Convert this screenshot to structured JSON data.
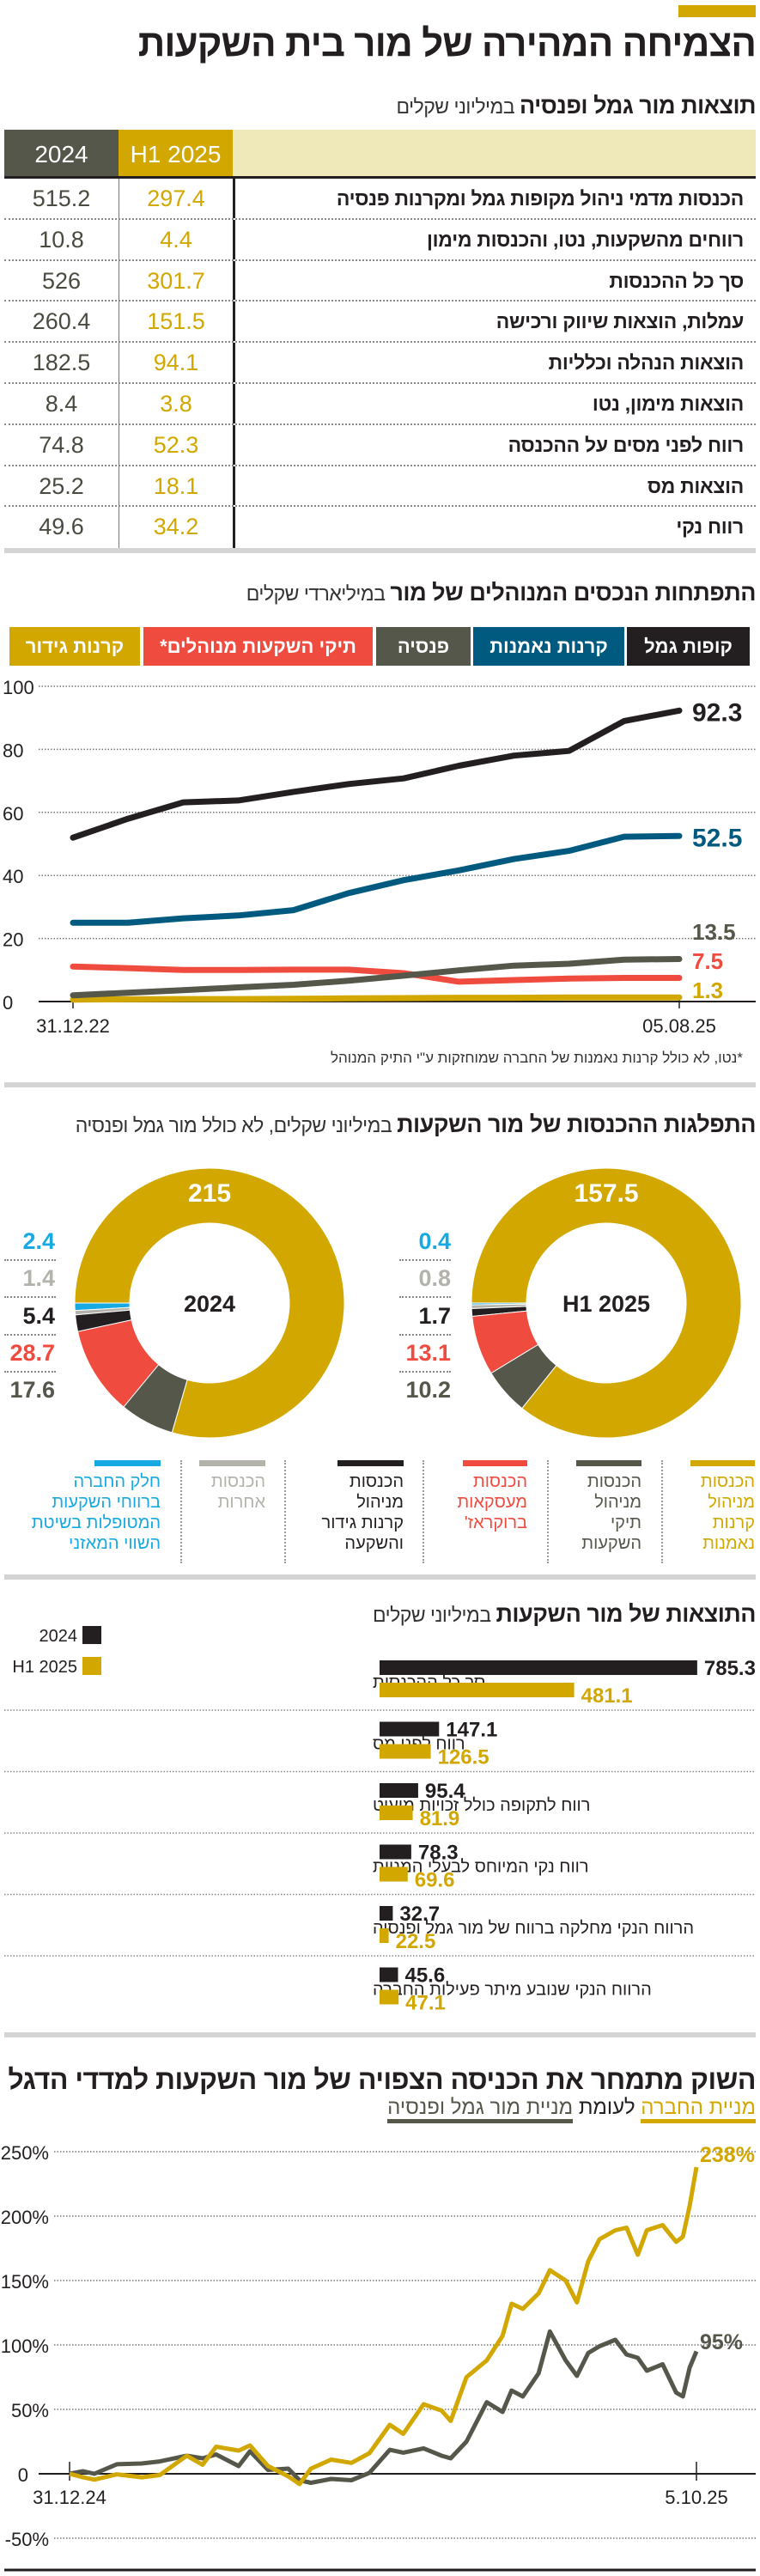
{
  "colors": {
    "gold": "#d2a800",
    "dark_gray": "#55574a",
    "black": "#231f20",
    "blue": "#005a80",
    "red": "#ef4b3f",
    "light_gray": "#b3b3ab",
    "light_blue": "#17a9e1",
    "cream": "#efe9b9"
  },
  "header": {
    "title": "הצמיחה המהירה של מור בית השקעות"
  },
  "table": {
    "title": "תוצאות מור גמל ופנסיה",
    "unit": " במיליוני שקלים",
    "columns": [
      "H1 2025",
      "2024"
    ],
    "rows": [
      {
        "label": "הכנסות מדמי ניהול מקופות גמל ומקרנות פנסיה",
        "h1_2025": "297.4",
        "y2024": "515.2"
      },
      {
        "label": "רווחים מהשקעות, נטו, והכנסות מימון",
        "h1_2025": "4.4",
        "y2024": "10.8"
      },
      {
        "label": "סך כל ההכנסות",
        "h1_2025": "301.7",
        "y2024": "526"
      },
      {
        "label": "עמלות, הוצאות שיווק ורכישה",
        "h1_2025": "151.5",
        "y2024": "260.4"
      },
      {
        "label": "הוצאות הנהלה וכלליות",
        "h1_2025": "94.1",
        "y2024": "182.5"
      },
      {
        "label": "הוצאות מימון, נטו",
        "h1_2025": "3.8",
        "y2024": "8.4"
      },
      {
        "label": "רווח לפני מסים על ההכנסה",
        "h1_2025": "52.3",
        "y2024": "74.8"
      },
      {
        "label": "הוצאות מס",
        "h1_2025": "18.1",
        "y2024": "25.2"
      },
      {
        "label": "רווח נקי",
        "h1_2025": "34.2",
        "y2024": "49.6"
      }
    ]
  },
  "assets": {
    "title": "התפתחות הנכסים המנוהלים של מור",
    "unit": " במיליארדי שקלים",
    "footnote": "*נטו, לא כולל קרנות נאמנות של החברה שמוחזקות ע\"י התיק המנוהל"
  },
  "income": {
    "title": "התפלגות ההכנסות של מור השקעות",
    "unit": " במיליוני שקלים, לא כולל מור גמל ופנסיה",
    "legend": [
      {
        "lines": [
          "הכנסות",
          "מניהול",
          "קרנות",
          "נאמנות"
        ],
        "color": "#d2a800"
      },
      {
        "lines": [
          "הכנסות",
          "מניהול",
          "תיקי",
          "השקעות"
        ],
        "color": "#55574a"
      },
      {
        "lines": [
          "הכנסות",
          "מעסקאות",
          "ברוקראז'"
        ],
        "color": "#ef4b3f"
      },
      {
        "lines": [
          "הכנסות",
          "מניהול",
          "קרנות גידור",
          "והשקעה"
        ],
        "color": "#231f20"
      },
      {
        "lines": [
          "הכנסות",
          "אחרות"
        ],
        "color": "#b3b3ab"
      },
      {
        "lines": [
          "חלק החברה",
          "ברווחי השקעות",
          "המטופלות בשיטת",
          "השווי המאזני"
        ],
        "color": "#17a9e1"
      }
    ]
  },
  "results": {
    "title": "התוצאות של מור השקעות",
    "unit": " במיליוני שקלים"
  },
  "stock": {
    "title": "השוק מתמחר את הכניסה הצפויה של מור השקעות למדדי הדגל",
    "subtitle_a": "מניית החברה",
    "subtitle_mid": "לעומת",
    "subtitle_b": "מניית מור גמל ופנסיה"
  },
  "chart_data": [
    {
      "type": "line",
      "title": "התפתחות הנכסים המנוהלים של מור",
      "ylabel": "",
      "ylim": [
        0,
        100
      ],
      "yticks": [
        "0",
        "20",
        "40",
        "60",
        "80",
        "100"
      ],
      "xticks": [
        "31.12.22",
        "05.08.25"
      ],
      "grid": true,
      "legend": "top",
      "series": [
        {
          "name": "קופות גמל",
          "color": "#231f20",
          "end_label": "92.3",
          "values": [
            52,
            58,
            63.2,
            63.8,
            66.5,
            69,
            70.8,
            74.8,
            78,
            79.5,
            89,
            92.3
          ]
        },
        {
          "name": "קרנות נאמנות",
          "color": "#005a80",
          "end_label": "52.5",
          "values": [
            25,
            25,
            26.4,
            27.3,
            29,
            34.4,
            38.5,
            41.6,
            45.2,
            47.8,
            52.3,
            52.5
          ]
        },
        {
          "name": "פנסיה",
          "color": "#55574a",
          "end_label": "13.5",
          "values": [
            2,
            2.8,
            3.6,
            4.5,
            5.3,
            6.6,
            8.2,
            9.9,
            11.4,
            12,
            13.3,
            13.5
          ]
        },
        {
          "name": "תיקי השקעות מנוהלים*",
          "color": "#ef4b3f",
          "end_label": "7.5",
          "values": [
            11.1,
            10.6,
            10,
            10,
            10.1,
            10.1,
            9,
            6.3,
            6.8,
            7.3,
            7.5,
            7.5
          ]
        },
        {
          "name": "קרנות גידור",
          "color": "#d2a800",
          "end_label": "1.3",
          "values": [
            0.6,
            0.7,
            0.8,
            0.8,
            0.9,
            1,
            1.1,
            1.2,
            1.2,
            1.3,
            1.3,
            1.3
          ]
        }
      ]
    },
    {
      "type": "pie",
      "center_label": "2024",
      "title": "התפלגות ההכנסות של מור השקעות",
      "slices": [
        {
          "label": "הכנסות מניהול קרנות נאמנות",
          "value": 215,
          "text": "215",
          "color": "#d2a800"
        },
        {
          "label": "הכנסות מניהול תיקי השקעות",
          "value": 17.6,
          "text": "17.6",
          "color": "#55574a"
        },
        {
          "label": "הכנסות מעסקאות ברוקראז'",
          "value": 28.7,
          "text": "28.7",
          "color": "#ef4b3f"
        },
        {
          "label": "הכנסות מניהול קרנות גידור והשקעה",
          "value": 5.4,
          "text": "5.4",
          "color": "#231f20"
        },
        {
          "label": "הכנסות אחרות",
          "value": 1.4,
          "text": "1.4",
          "color": "#b3b3ab"
        },
        {
          "label": "חלק החברה ברווחי השקעות המטופלות בשיטת השווי המאזני",
          "value": 2.4,
          "text": "2.4",
          "color": "#17a9e1"
        }
      ]
    },
    {
      "type": "pie",
      "center_label": "H1 2025",
      "slices": [
        {
          "label": "הכנסות מניהול קרנות נאמנות",
          "value": 157.5,
          "text": "157.5",
          "color": "#d2a800"
        },
        {
          "label": "הכנסות מניהול תיקי השקעות",
          "value": 10.2,
          "text": "10.2",
          "color": "#55574a"
        },
        {
          "label": "הכנסות מעסקאות ברוקראז'",
          "value": 13.1,
          "text": "13.1",
          "color": "#ef4b3f"
        },
        {
          "label": "הכנסות מניהול קרנות גידור והשקעה",
          "value": 1.7,
          "text": "1.7",
          "color": "#231f20"
        },
        {
          "label": "הכנסות אחרות",
          "value": 0.8,
          "text": "0.8",
          "color": "#b3b3ab"
        },
        {
          "label": "חלק החברה ברווחי השקעות המטופלות בשיטת השווי המאזני",
          "value": 0.4,
          "text": "0.4",
          "color": "#17a9e1"
        }
      ]
    },
    {
      "type": "bar",
      "title": "התוצאות של מור השקעות",
      "legend": "top-left",
      "categories": [
        "סך כל ההכנסות",
        "רווח לפני מס",
        "רווח לתקופה כולל זכויות מיעוט",
        "רווח נקי המיוחס לבעלי המניות",
        "הרווח הנקי מחלקה ברווח של מור גמל ופנסיה",
        "הרווח הנקי שנובע מיתר פעילות החברה"
      ],
      "series": [
        {
          "name": "2024",
          "color": "#231f20",
          "values": [
            785.3,
            147.1,
            95.4,
            78.3,
            32.7,
            45.6
          ]
        },
        {
          "name": "H1 2025",
          "color": "#d2a800",
          "values": [
            481.1,
            126.5,
            81.9,
            69.6,
            22.5,
            47.1
          ]
        }
      ]
    },
    {
      "type": "line",
      "title": "השוק מתמחר את הכניסה הצפויה של מור השקעות למדדי הדגל",
      "ylim": [
        -50,
        250
      ],
      "yticks": [
        "-50%",
        "0",
        "50%",
        "100%",
        "150%",
        "200%",
        "250%"
      ],
      "xticks": [
        "31.12.24",
        "5.10.25"
      ],
      "xlim": [
        "2024-12-31",
        "2025-10-05"
      ],
      "grid": true,
      "x": [
        "2024-12-31",
        "2025-01-06",
        "2025-01-11",
        "2025-01-21",
        "2025-02-01",
        "2025-02-09",
        "2025-02-21",
        "2025-02-28",
        "2025-03-06",
        "2025-03-16",
        "2025-03-21",
        "2025-03-29",
        "2025-04-07",
        "2025-04-12",
        "2025-04-17",
        "2025-04-26",
        "2025-05-05",
        "2025-05-13",
        "2025-05-22",
        "2025-05-28",
        "2025-06-06",
        "2025-06-14",
        "2025-06-18",
        "2025-06-25",
        "2025-07-04",
        "2025-07-11",
        "2025-07-15",
        "2025-07-20",
        "2025-07-27",
        "2025-08-01",
        "2025-08-08",
        "2025-08-13",
        "2025-08-18",
        "2025-08-23",
        "2025-08-30",
        "2025-09-04",
        "2025-09-09",
        "2025-09-13",
        "2025-09-20",
        "2025-09-26",
        "2025-09-29",
        "2025-10-02",
        "2025-10-05"
      ],
      "series": [
        {
          "name": "מניית החברה",
          "color": "#d2a800",
          "end_label": "238%",
          "values": [
            0,
            -2.7,
            -4.5,
            -0.4,
            -2.7,
            -1,
            14,
            7,
            21,
            18,
            22,
            6,
            -2,
            -8,
            4,
            11,
            8.5,
            16,
            38,
            31,
            54,
            49,
            41,
            75,
            88,
            107,
            132,
            128,
            140,
            158,
            150,
            133,
            165,
            182,
            189,
            191,
            170,
            189,
            193,
            180,
            184,
            208,
            238
          ]
        },
        {
          "name": "מניית מור גמל ופנסיה",
          "color": "#55574a",
          "end_label": "95%",
          "values": [
            0,
            2,
            0,
            7.4,
            8,
            9.6,
            14,
            12,
            15,
            6,
            17.5,
            3,
            4,
            -5,
            -7,
            -4,
            -5,
            0.7,
            18.6,
            16.4,
            19.7,
            14,
            12,
            25,
            55.6,
            48,
            64.6,
            60,
            78,
            110.5,
            88,
            76,
            93.7,
            99,
            104,
            92.6,
            90,
            80,
            85,
            63,
            60,
            82.5,
            95
          ]
        }
      ]
    }
  ]
}
